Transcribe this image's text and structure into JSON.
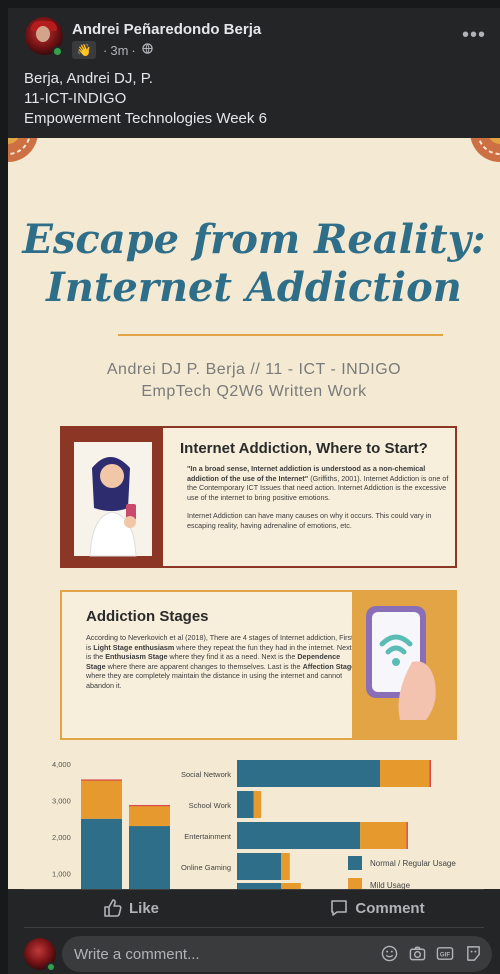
{
  "post": {
    "author": "Andrei Peñaredondo Berja",
    "time": "3m",
    "caption_lines": [
      "Berja, Andrei DJ, P.",
      "11-ICT-INDIGO",
      "Empowerment Technologies Week 6"
    ],
    "more_label": "•••"
  },
  "infographic": {
    "title_line1": "Escape from Reality:",
    "title_line2": "Internet Addiction",
    "subtitle_line1": "Andrei DJ P. Berja // 11 - ICT - INDIGO",
    "subtitle_line2": "EmpTech Q2W6 Written Work",
    "card1": {
      "heading": "Internet Addiction, Where to Start?",
      "quote": "\"In a broad sense, Internet addiction is understood as a non-chemical addiction of the use of the Internet\"",
      "citation": " (Griffiths, 2001).",
      "para1": "Internet Addiction is one of the Contemporary ICT Issues that need action. Internet Addiction is the excessive use of the internet to bring positive emotions.",
      "para2": "Internet Addiction can have many causes on why it occurs. This could vary in escaping reality, having adrenaline of emotions, etc."
    },
    "card2": {
      "heading": "Addiction Stages",
      "t1": "According to Neverkovich et al (2018), There are 4 stages of Internet addiction, First is ",
      "b1": "Light Stage enthusiasm",
      "t2": " where they repeat the fun they had in the internet. Next is the ",
      "b2": "Enthusiasm Stage",
      "t3": " where they find it as a need. Next is the ",
      "b3": "Dependence Stage",
      "t4": " where there are apparent changes to themselves. Last is the ",
      "b4": "Affection Stage",
      "t5": " where they are completely maintain the distance in using the internet and cannot abandon it."
    }
  },
  "chart_data": [
    {
      "type": "bar",
      "ytick_labels": [
        "4,000",
        "3,000",
        "2,000",
        "1,000"
      ],
      "ylim": [
        0,
        4000
      ],
      "series": [
        {
          "values": [
            2500,
            2300
          ]
        },
        {
          "values": [
            1050,
            550
          ]
        }
      ],
      "colors": [
        "#2f6e89",
        "#e69a2e"
      ]
    },
    {
      "type": "bar",
      "orientation": "horizontal",
      "categories": [
        "Social Network",
        "School Work",
        "Entertainment",
        "Online Gaming"
      ],
      "series": [
        {
          "name": "Normal / Regular Usage",
          "values": [
            130,
            15,
            112,
            40
          ]
        },
        {
          "name": "Mild Usage",
          "values": [
            45,
            7,
            42,
            8
          ]
        }
      ],
      "colors": [
        "#2f6e89",
        "#e69a2e"
      ],
      "legend": "bottom-right"
    }
  ],
  "actions": {
    "like": "Like",
    "comment": "Comment",
    "comment_placeholder": "Write a comment..."
  }
}
